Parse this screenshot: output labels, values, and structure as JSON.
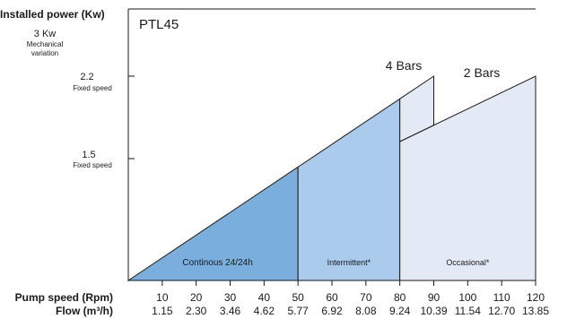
{
  "chart_data": {
    "type": "area",
    "title": "PTL45",
    "ylabel": "Installed power (Kw)",
    "xlabel_rows": [
      "Pump speed (Rpm)",
      "Flow (m³/h)"
    ],
    "y_levels": [
      {
        "value": "3 Kw",
        "note": [
          "Mechanical",
          "variation"
        ]
      },
      {
        "value": "2.2",
        "note": [
          "Fixed speed"
        ]
      },
      {
        "value": "1.5",
        "note": [
          "Fixed speed"
        ]
      }
    ],
    "xlim": [
      0,
      120
    ],
    "x_ticks": [
      10,
      20,
      30,
      40,
      50,
      60,
      70,
      80,
      90,
      100,
      110,
      120
    ],
    "flow_ticks": [
      "1.15",
      "2.30",
      "3.46",
      "4.62",
      "5.77",
      "6.92",
      "8.08",
      "9.24",
      "10.39",
      "11.54",
      "12.70",
      "13.85"
    ],
    "regions": [
      {
        "label": "Continous 24/24h",
        "x_range": [
          0,
          50
        ],
        "color": "#7aaedc"
      },
      {
        "label": "Intermittent*",
        "x_range": [
          50,
          80
        ],
        "color": "#aacbec"
      },
      {
        "label": "Occasional*",
        "x_range": [
          80,
          120
        ],
        "color": "#e3e9f5"
      }
    ],
    "curves": [
      {
        "label": "4 Bars",
        "rpm": [
          0,
          90
        ],
        "note": "top edge reaches the 2.2 level at 90 Rpm"
      },
      {
        "label": "2 Bars",
        "rpm": [
          80,
          120
        ],
        "note": "top edge reaches the 2.2 level at 120 Rpm"
      }
    ],
    "grid": false,
    "legend": "none"
  }
}
